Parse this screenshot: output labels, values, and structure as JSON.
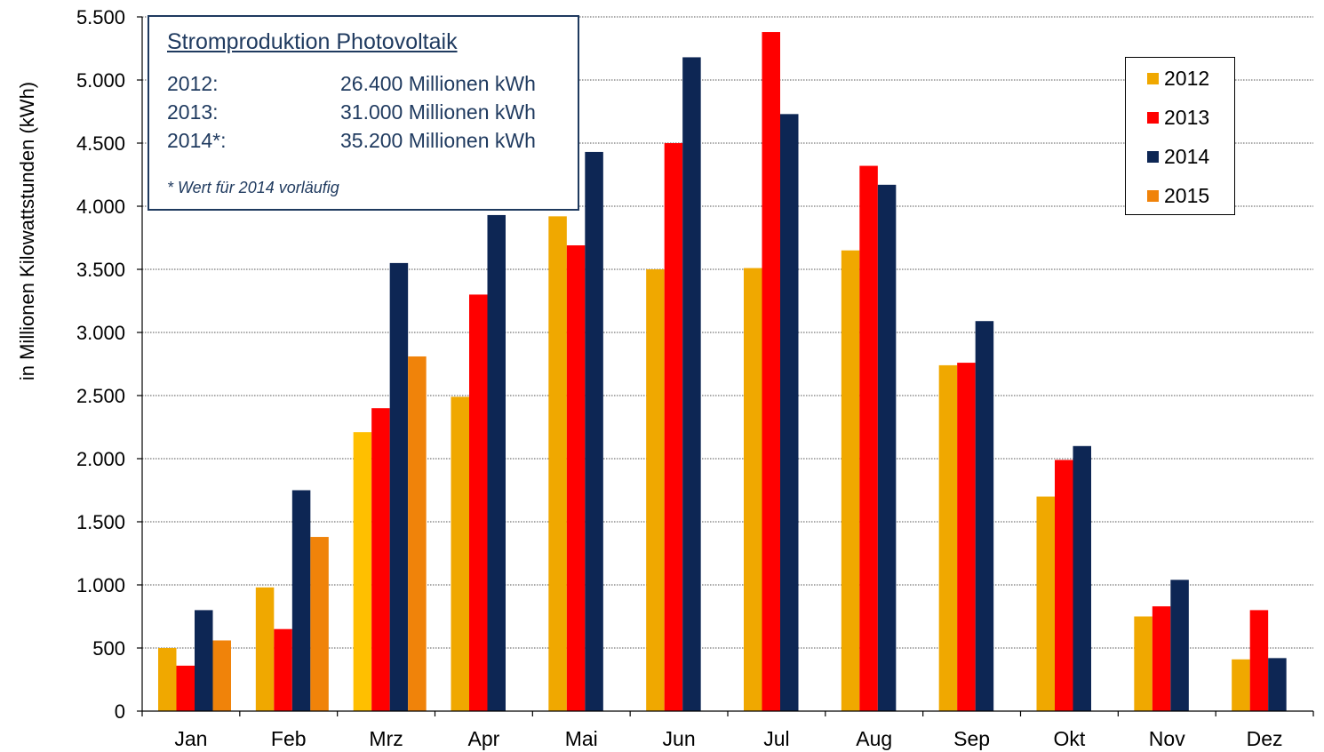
{
  "colors": {
    "2012": "#f0a800",
    "2013": "#ff0000",
    "2014": "#0d2654",
    "2015": "#f0830a",
    "mrz_2012": "#ffbf00",
    "axis_text": "#000000",
    "box_text": "#1f3a5f"
  },
  "infobox": {
    "title": "Stromproduktion Photovoltaik",
    "rows": [
      {
        "year": "2012:",
        "value": "26.400 Millionen kWh"
      },
      {
        "year": "2013:",
        "value": "31.000 Millionen kWh"
      },
      {
        "year": "2014*:",
        "value": "35.200 Millionen kWh"
      }
    ],
    "note": "* Wert für 2014 vorläufig"
  },
  "chart_data": {
    "type": "bar",
    "ylabel": "in Millionen Kilowattstunden (kWh)",
    "xlabel": "",
    "ylim": [
      0,
      5500
    ],
    "yticks": [
      0,
      500,
      1000,
      1500,
      2000,
      2500,
      3000,
      3500,
      4000,
      4500,
      5000,
      5500
    ],
    "ytick_labels": [
      "0",
      "500",
      "1.000",
      "1.500",
      "2.000",
      "2.500",
      "3.000",
      "3.500",
      "4.000",
      "4.500",
      "5.000",
      "5.500"
    ],
    "grid": true,
    "legend": "top-right",
    "categories": [
      "Jan",
      "Feb",
      "Mrz",
      "Apr",
      "Mai",
      "Jun",
      "Jul",
      "Aug",
      "Sep",
      "Okt",
      "Nov",
      "Dez"
    ],
    "series": [
      {
        "name": "2012",
        "values": [
          500,
          980,
          2210,
          2490,
          3920,
          3500,
          3510,
          3650,
          2740,
          1700,
          750,
          410
        ]
      },
      {
        "name": "2013",
        "values": [
          360,
          650,
          2400,
          3300,
          3690,
          4500,
          5380,
          4320,
          2760,
          1990,
          830,
          800
        ]
      },
      {
        "name": "2014",
        "values": [
          800,
          1750,
          3550,
          3930,
          4430,
          5180,
          4730,
          4170,
          3090,
          2100,
          1040,
          420
        ]
      },
      {
        "name": "2015",
        "values": [
          560,
          1380,
          2810,
          null,
          null,
          null,
          null,
          null,
          null,
          null,
          null,
          null
        ]
      }
    ]
  }
}
